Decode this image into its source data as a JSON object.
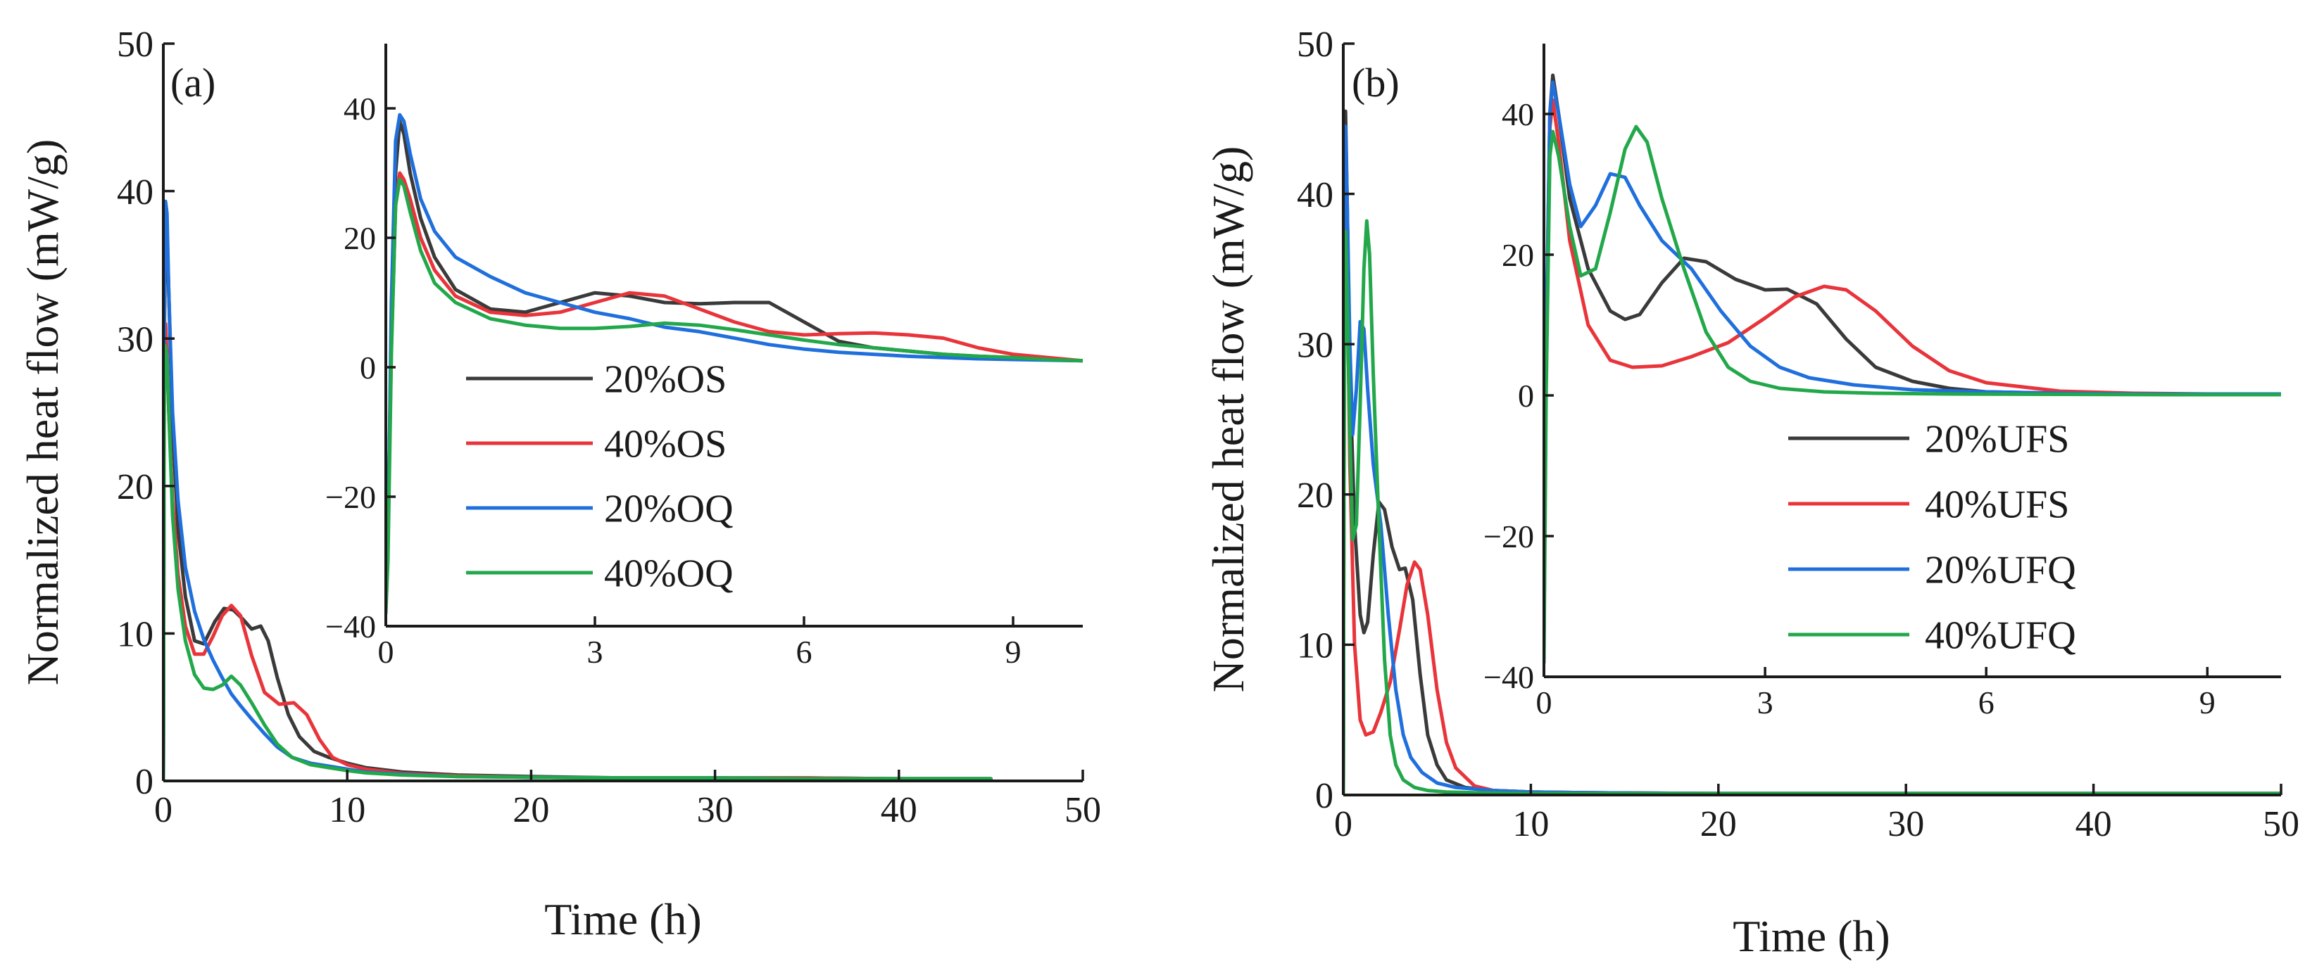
{
  "colors": {
    "black": "#3a3a3a",
    "red": "#e8343a",
    "blue": "#1f6fdc",
    "green": "#22a84a"
  },
  "chart_data": [
    {
      "panel": "main-a",
      "type": "line",
      "label": "(a)",
      "xlabel": "Time (h)",
      "ylabel": "Normalized heat flow (mW/g)",
      "xlim": [
        0,
        50
      ],
      "ylim": [
        0,
        50
      ],
      "xticks": [
        0,
        10,
        20,
        30,
        40,
        50
      ],
      "yticks": [
        0,
        10,
        20,
        30,
        40,
        50
      ],
      "xtick_labels": [
        "0",
        "10",
        "20",
        "30",
        "40",
        "50"
      ],
      "ytick_labels": [
        "0",
        "10",
        "20",
        "30",
        "40",
        "50"
      ],
      "series": [
        {
          "name": "20%OS",
          "color": "black",
          "x": [
            0,
            0.05,
            0.12,
            0.2,
            0.3,
            0.5,
            0.8,
            1.2,
            1.7,
            2.2,
            2.8,
            3.3,
            3.8,
            4.3,
            4.8,
            5.3,
            5.7,
            6.2,
            6.8,
            7.4,
            8.2,
            9,
            10,
            11,
            13,
            16,
            20,
            25,
            30,
            35,
            40,
            45
          ],
          "y": [
            0,
            30,
            37,
            37.5,
            33,
            24,
            17,
            12.5,
            9.5,
            9.3,
            10.8,
            11.7,
            11.6,
            11,
            10.3,
            10.5,
            9.5,
            7,
            4.5,
            3,
            2,
            1.6,
            1.2,
            0.9,
            0.6,
            0.4,
            0.3,
            0.2,
            0.2,
            0.2,
            0.15,
            0.15
          ]
        },
        {
          "name": "40%OS",
          "color": "red",
          "x": [
            0,
            0.05,
            0.12,
            0.2,
            0.3,
            0.5,
            0.8,
            1.2,
            1.7,
            2.2,
            2.7,
            3.2,
            3.7,
            4.2,
            4.8,
            5.5,
            6.3,
            7.1,
            7.8,
            8.5,
            9.2,
            10,
            11,
            13,
            16,
            20,
            25,
            30,
            35,
            40,
            45
          ],
          "y": [
            0,
            28,
            31,
            29,
            25,
            19,
            14,
            10.5,
            8.6,
            8.6,
            9.8,
            11.2,
            11.9,
            11.2,
            8.5,
            6,
            5.2,
            5.3,
            4.5,
            2.8,
            1.6,
            1.1,
            0.8,
            0.5,
            0.35,
            0.25,
            0.2,
            0.2,
            0.2,
            0.15,
            0.15
          ]
        },
        {
          "name": "20%OQ",
          "color": "blue",
          "x": [
            0,
            0.05,
            0.12,
            0.2,
            0.3,
            0.5,
            0.8,
            1.2,
            1.7,
            2.2,
            2.7,
            3.2,
            3.7,
            4.2,
            4.8,
            5.5,
            6.2,
            7,
            8,
            9,
            10,
            11,
            13,
            16,
            20,
            25,
            30,
            35,
            40,
            45
          ],
          "y": [
            0,
            32,
            39.3,
            38.5,
            33,
            25,
            19,
            14.5,
            11.5,
            9.6,
            8.2,
            7,
            5.9,
            5.1,
            4.2,
            3.2,
            2.3,
            1.6,
            1.2,
            1,
            0.8,
            0.6,
            0.45,
            0.3,
            0.25,
            0.2,
            0.2,
            0.15,
            0.15,
            0.15
          ]
        },
        {
          "name": "40%OQ",
          "color": "green",
          "x": [
            0,
            0.05,
            0.12,
            0.2,
            0.3,
            0.5,
            0.8,
            1.2,
            1.7,
            2.2,
            2.7,
            3.2,
            3.7,
            4.2,
            4.8,
            5.5,
            6.2,
            7,
            8,
            9,
            10,
            11,
            13,
            16,
            20,
            25,
            30,
            35,
            40,
            45
          ],
          "y": [
            0,
            26,
            29.5,
            28.5,
            25,
            18,
            13,
            9.5,
            7.2,
            6.3,
            6.2,
            6.5,
            7.1,
            6.5,
            5.3,
            3.8,
            2.5,
            1.6,
            1.1,
            0.9,
            0.7,
            0.55,
            0.4,
            0.3,
            0.25,
            0.2,
            0.2,
            0.15,
            0.15,
            0.15
          ]
        }
      ]
    },
    {
      "panel": "inset-a",
      "type": "line",
      "xlim": [
        0,
        10
      ],
      "ylim": [
        -40,
        50
      ],
      "xticks": [
        0,
        3,
        6,
        9
      ],
      "yticks": [
        -40,
        -20,
        0,
        20,
        40
      ],
      "xtick_labels": [
        "0",
        "3",
        "6",
        "9"
      ],
      "ytick_labels": [
        "−40",
        "−20",
        "0",
        "20",
        "40"
      ],
      "legend": [
        "20%OS",
        "40%OS",
        "20%OQ",
        "40%OQ"
      ],
      "series": [
        {
          "name": "20%OS",
          "color": "black",
          "x": [
            0,
            0.03,
            0.08,
            0.14,
            0.2,
            0.26,
            0.35,
            0.5,
            0.7,
            1,
            1.5,
            2,
            2.5,
            3,
            3.5,
            4,
            4.5,
            5,
            5.5,
            6,
            6.5,
            7,
            7.5,
            8,
            8.5,
            9,
            9.5,
            10
          ],
          "y": [
            -30,
            -25,
            5,
            30,
            38,
            36,
            30,
            23,
            17,
            12,
            9,
            8.5,
            10,
            11.5,
            11,
            10,
            9.8,
            10,
            10,
            7,
            4,
            3,
            2.5,
            2,
            1.7,
            1.5,
            1.2,
            1
          ]
        },
        {
          "name": "40%OS",
          "color": "red",
          "x": [
            0,
            0.03,
            0.08,
            0.14,
            0.2,
            0.26,
            0.35,
            0.5,
            0.7,
            1,
            1.5,
            2,
            2.5,
            3,
            3.5,
            4,
            4.5,
            5,
            5.5,
            6,
            6.5,
            7,
            7.5,
            8,
            8.5,
            9,
            9.5,
            10
          ],
          "y": [
            -32,
            -27,
            3,
            25,
            30,
            29,
            26,
            20,
            15,
            11,
            8.5,
            8,
            8.5,
            10,
            11.5,
            11,
            9,
            7,
            5.5,
            5,
            5.2,
            5.3,
            5,
            4.5,
            3,
            2,
            1.5,
            1
          ]
        },
        {
          "name": "20%OQ",
          "color": "blue",
          "x": [
            0,
            0.03,
            0.08,
            0.14,
            0.2,
            0.26,
            0.35,
            0.5,
            0.7,
            1,
            1.5,
            2,
            2.5,
            3,
            3.5,
            4,
            4.5,
            5,
            5.5,
            6,
            6.5,
            7,
            7.5,
            8,
            8.5,
            9,
            9.5,
            10
          ],
          "y": [
            -35,
            -28,
            10,
            35,
            39,
            38,
            33,
            26,
            21,
            17,
            14,
            11.5,
            10,
            8.5,
            7.5,
            6.2,
            5.5,
            4.5,
            3.5,
            2.8,
            2.3,
            2,
            1.7,
            1.5,
            1.3,
            1.2,
            1.1,
            1
          ]
        },
        {
          "name": "40%OQ",
          "color": "green",
          "x": [
            0,
            0.03,
            0.08,
            0.14,
            0.2,
            0.26,
            0.35,
            0.5,
            0.7,
            1,
            1.5,
            2,
            2.5,
            3,
            3.5,
            4,
            4.5,
            5,
            5.5,
            6,
            6.5,
            7,
            7.5,
            8,
            8.5,
            9,
            9.5,
            10
          ],
          "y": [
            -38,
            -30,
            2,
            25,
            29,
            28,
            24,
            18,
            13,
            10,
            7.5,
            6.5,
            6,
            6,
            6.3,
            6.8,
            6.5,
            5.8,
            5,
            4.2,
            3.5,
            3,
            2.5,
            2,
            1.7,
            1.5,
            1.2,
            1
          ]
        }
      ]
    },
    {
      "panel": "main-b",
      "type": "line",
      "label": "(b)",
      "xlabel": "Time (h)",
      "ylabel": "Normalized heat flow (mW/g)",
      "xlim": [
        0,
        50
      ],
      "ylim": [
        0,
        50
      ],
      "xticks": [
        0,
        10,
        20,
        30,
        40,
        50
      ],
      "yticks": [
        0,
        10,
        20,
        30,
        40,
        50
      ],
      "xtick_labels": [
        "0",
        "10",
        "20",
        "30",
        "40",
        "50"
      ],
      "ytick_labels": [
        "0",
        "10",
        "20",
        "30",
        "40",
        "50"
      ],
      "series": [
        {
          "name": "20%UFS",
          "color": "black",
          "x": [
            0,
            0.03,
            0.08,
            0.12,
            0.2,
            0.35,
            0.6,
            0.9,
            1.1,
            1.3,
            1.6,
            1.9,
            2.2,
            2.6,
            3,
            3.3,
            3.7,
            4.1,
            4.5,
            5,
            5.5,
            6.5,
            8,
            10,
            13,
            20,
            30,
            40,
            50
          ],
          "y": [
            0,
            20,
            40,
            45.5,
            40,
            28,
            18,
            12,
            10.8,
            11.5,
            16,
            19.5,
            19,
            16.5,
            15,
            15.1,
            13,
            8,
            4,
            2,
            1,
            0.5,
            0.3,
            0.2,
            0.15,
            0.1,
            0.1,
            0.1,
            0.1
          ]
        },
        {
          "name": "40%UFS",
          "color": "red",
          "x": [
            0,
            0.03,
            0.08,
            0.12,
            0.2,
            0.35,
            0.6,
            0.9,
            1.2,
            1.6,
            2,
            2.5,
            3,
            3.4,
            3.8,
            4.1,
            4.5,
            5,
            5.5,
            6,
            7,
            8,
            10,
            13,
            20,
            30,
            40,
            50
          ],
          "y": [
            0,
            18,
            38,
            42,
            36,
            22,
            10,
            5,
            4,
            4.2,
            5.5,
            7.5,
            11,
            14,
            15.5,
            15,
            12,
            7,
            3.5,
            1.8,
            0.6,
            0.3,
            0.2,
            0.15,
            0.1,
            0.1,
            0.1,
            0.1
          ]
        },
        {
          "name": "20%UFQ",
          "color": "blue",
          "x": [
            0,
            0.03,
            0.08,
            0.12,
            0.2,
            0.35,
            0.5,
            0.7,
            0.9,
            1.1,
            1.3,
            1.6,
            2,
            2.4,
            2.8,
            3.2,
            3.6,
            4.2,
            5,
            6,
            8,
            10,
            13,
            20,
            30,
            40,
            50
          ],
          "y": [
            0,
            22,
            40,
            44.5,
            40,
            30,
            24,
            27,
            31.5,
            31,
            27,
            22,
            18,
            12,
            7,
            4,
            2.5,
            1.5,
            0.8,
            0.5,
            0.3,
            0.2,
            0.15,
            0.1,
            0.1,
            0.1,
            0.1
          ]
        },
        {
          "name": "40%UFQ",
          "color": "green",
          "x": [
            0,
            0.03,
            0.08,
            0.12,
            0.2,
            0.35,
            0.5,
            0.7,
            0.9,
            1.1,
            1.25,
            1.4,
            1.6,
            1.9,
            2.2,
            2.5,
            2.8,
            3.2,
            3.8,
            4.5,
            5.5,
            7,
            10,
            13,
            20,
            30,
            40,
            50
          ],
          "y": [
            0,
            18,
            34,
            37.5,
            34,
            24,
            17,
            18,
            26,
            35,
            38.2,
            36,
            28,
            18,
            9,
            4,
            2,
            1,
            0.5,
            0.3,
            0.2,
            0.15,
            0.1,
            0.1,
            0.1,
            0.1,
            0.1,
            0.1
          ]
        }
      ]
    },
    {
      "panel": "inset-b",
      "type": "line",
      "xlim": [
        0,
        10
      ],
      "ylim": [
        -40,
        50
      ],
      "xticks": [
        0,
        3,
        6,
        9
      ],
      "yticks": [
        -40,
        -20,
        0,
        20,
        40
      ],
      "xtick_labels": [
        "0",
        "3",
        "6",
        "9"
      ],
      "ytick_labels": [
        "−40",
        "−20",
        "0",
        "20",
        "40"
      ],
      "legend": [
        "20%UFS",
        "40%UFS",
        "20%UFQ",
        "40%UFQ"
      ],
      "series": [
        {
          "name": "20%UFS",
          "color": "black",
          "x": [
            0,
            0.03,
            0.08,
            0.12,
            0.2,
            0.35,
            0.6,
            0.9,
            1.1,
            1.3,
            1.6,
            1.9,
            2.2,
            2.6,
            3,
            3.3,
            3.7,
            4.1,
            4.5,
            5,
            5.5,
            6,
            7,
            8,
            9,
            10
          ],
          "y": [
            -30,
            5,
            40,
            45.5,
            40,
            28,
            18,
            12,
            10.8,
            11.5,
            16,
            19.5,
            19,
            16.5,
            15,
            15.1,
            13,
            8,
            4,
            2,
            1,
            0.5,
            0.3,
            0.2,
            0.2,
            0.2
          ]
        },
        {
          "name": "40%UFS",
          "color": "red",
          "x": [
            0,
            0.03,
            0.08,
            0.12,
            0.2,
            0.35,
            0.6,
            0.9,
            1.2,
            1.6,
            2,
            2.5,
            3,
            3.4,
            3.8,
            4.1,
            4.5,
            5,
            5.5,
            6,
            7,
            8,
            9,
            10
          ],
          "y": [
            -32,
            3,
            38,
            42,
            36,
            22,
            10,
            5,
            4,
            4.2,
            5.5,
            7.5,
            11,
            14,
            15.5,
            15,
            12,
            7,
            3.5,
            1.8,
            0.6,
            0.3,
            0.2,
            0.2
          ]
        },
        {
          "name": "20%UFQ",
          "color": "blue",
          "x": [
            0,
            0.03,
            0.08,
            0.12,
            0.2,
            0.35,
            0.5,
            0.7,
            0.9,
            1.1,
            1.3,
            1.6,
            2,
            2.4,
            2.8,
            3.2,
            3.6,
            4.2,
            5,
            6,
            7,
            8,
            9,
            10
          ],
          "y": [
            -35,
            8,
            40,
            44.5,
            40,
            30,
            24,
            27,
            31.5,
            31,
            27,
            22,
            18,
            12,
            7,
            4,
            2.5,
            1.5,
            0.8,
            0.5,
            0.3,
            0.2,
            0.2,
            0.2
          ]
        },
        {
          "name": "40%UFQ",
          "color": "green",
          "x": [
            0,
            0.03,
            0.08,
            0.12,
            0.2,
            0.35,
            0.5,
            0.7,
            0.9,
            1.1,
            1.25,
            1.4,
            1.6,
            1.9,
            2.2,
            2.5,
            2.8,
            3.2,
            3.8,
            4.5,
            5.5,
            7,
            8.5,
            10
          ],
          "y": [
            -38,
            0,
            34,
            37.5,
            34,
            24,
            17,
            18,
            26,
            35,
            38.2,
            36,
            28,
            18,
            9,
            4,
            2,
            1,
            0.5,
            0.3,
            0.2,
            0.15,
            0.1,
            0.1
          ]
        }
      ]
    }
  ]
}
